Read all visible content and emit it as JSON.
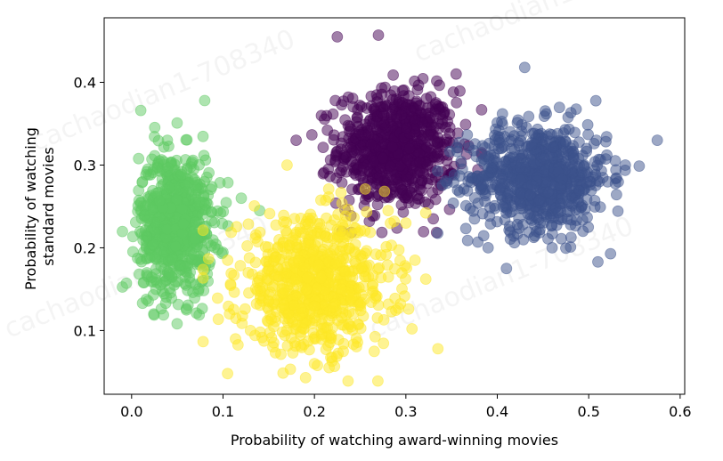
{
  "chart_data": {
    "type": "scatter",
    "title": "",
    "xlabel": "Probability of watching award-winning movies",
    "ylabel_lines": [
      "Probability of watching",
      "standard movies"
    ],
    "xlim": [
      -0.03,
      0.605
    ],
    "ylim": [
      0.023,
      0.478
    ],
    "x_ticks": [
      0.0,
      0.1,
      0.2,
      0.3,
      0.4,
      0.5,
      0.6
    ],
    "x_tick_labels": [
      "0.0",
      "0.1",
      "0.2",
      "0.3",
      "0.4",
      "0.5",
      "0.6"
    ],
    "y_ticks": [
      0.1,
      0.2,
      0.3,
      0.4
    ],
    "y_tick_labels": [
      "0.1",
      "0.2",
      "0.3",
      "0.4"
    ],
    "grid": false,
    "legend": "none",
    "marker_alpha": 0.5,
    "watermark_text": "cachaodian1-708340",
    "series": [
      {
        "color": "#440154",
        "center": [
          0.29,
          0.32
        ],
        "spread": [
          0.032,
          0.035
        ],
        "outliers": [
          [
            0.225,
            0.455
          ],
          [
            0.27,
            0.457
          ],
          [
            0.18,
            0.33
          ],
          [
            0.33,
            0.235
          ],
          [
            0.355,
            0.41
          ],
          [
            0.23,
            0.22
          ],
          [
            0.34,
            0.37
          ]
        ]
      },
      {
        "color": "#3b528b",
        "center": [
          0.445,
          0.285
        ],
        "spread": [
          0.038,
          0.032
        ],
        "outliers": [
          [
            0.575,
            0.33
          ],
          [
            0.51,
            0.183
          ],
          [
            0.43,
            0.418
          ],
          [
            0.41,
            0.175
          ],
          [
            0.54,
            0.3
          ],
          [
            0.46,
            0.2
          ],
          [
            0.39,
            0.2
          ]
        ]
      },
      {
        "color": "#5ec962",
        "center": [
          0.048,
          0.23
        ],
        "spread": [
          0.02,
          0.042
        ],
        "outliers": [
          [
            0.01,
            0.366
          ],
          [
            0.08,
            0.378
          ],
          [
            0.14,
            0.245
          ],
          [
            0.012,
            0.133
          ],
          [
            0.06,
            0.125
          ],
          [
            0.12,
            0.26
          ]
        ]
      },
      {
        "color": "#fde725",
        "center": [
          0.2,
          0.155
        ],
        "spread": [
          0.042,
          0.04
        ],
        "outliers": [
          [
            0.105,
            0.048
          ],
          [
            0.335,
            0.078
          ],
          [
            0.17,
            0.3
          ],
          [
            0.13,
            0.1
          ],
          [
            0.3,
            0.23
          ],
          [
            0.31,
            0.185
          ],
          [
            0.2,
            0.06
          ]
        ]
      }
    ]
  }
}
